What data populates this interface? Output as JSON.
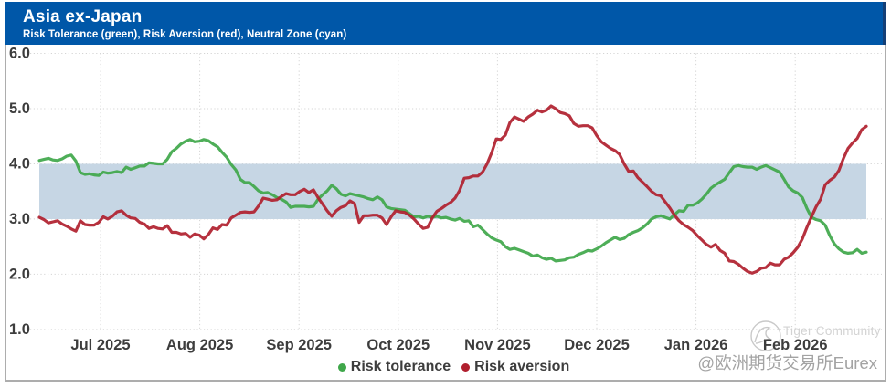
{
  "header": {
    "title": "Asia ex-Japan",
    "subtitle": "Risk Tolerance (green), Risk Aversion (red), Neutral Zone (cyan)",
    "background_color": "#0057a8"
  },
  "watermark": {
    "logo": "tiger-circle-sketch",
    "brand": "Tiger Community",
    "handle": "@欧洲期货交易所Eurex"
  },
  "chart_data": {
    "type": "line",
    "title": "Asia ex-Japan",
    "subtitle": "Risk Tolerance (green), Risk Aversion (red), Neutral Zone (cyan)",
    "grid": "dotted",
    "x_axis": {
      "unit": "months (0 = Jul 2025 tick, 1 = Aug 2025, ...)",
      "start": -0.617,
      "step": 0.04604,
      "tick_values": [
        0,
        1,
        2,
        3,
        4,
        5,
        6,
        7
      ],
      "tick_labels": [
        "Jul 2025",
        "Aug 2025",
        "Sep 2025",
        "Oct 2025",
        "Nov 2025",
        "Dec 2025",
        "Jan 2026",
        "Feb 2026"
      ]
    },
    "y_axis": {
      "min": 1.0,
      "max": 6.0,
      "tick_values": [
        6,
        5,
        4,
        3,
        2,
        1
      ],
      "tick_labels": [
        "6.0",
        "5.0",
        "4.0",
        "3.0",
        "2.0",
        "1.0"
      ]
    },
    "neutral_zone": {
      "label": "Neutral Zone (cyan)",
      "from": 3.0,
      "to": 4.0,
      "color": "#c6d6e4"
    },
    "legend": {
      "position": "bottom-center",
      "entries": [
        "Risk tolerance",
        "Risk aversion"
      ]
    },
    "series": [
      {
        "name": "Risk tolerance",
        "color": "#3fa74a",
        "values": [
          4.06,
          4.08,
          4.1,
          4.07,
          4.06,
          4.09,
          4.14,
          4.16,
          4.05,
          3.84,
          3.81,
          3.82,
          3.8,
          3.79,
          3.85,
          3.83,
          3.84,
          3.86,
          3.84,
          3.94,
          3.9,
          3.93,
          3.96,
          3.96,
          4.02,
          4.01,
          4.0,
          4.0,
          4.08,
          4.22,
          4.28,
          4.36,
          4.41,
          4.44,
          4.4,
          4.41,
          4.44,
          4.42,
          4.36,
          4.31,
          4.21,
          4.12,
          3.99,
          3.89,
          3.72,
          3.66,
          3.66,
          3.59,
          3.51,
          3.47,
          3.48,
          3.44,
          3.39,
          3.36,
          3.31,
          3.21,
          3.23,
          3.23,
          3.23,
          3.22,
          3.23,
          3.36,
          3.44,
          3.51,
          3.61,
          3.55,
          3.45,
          3.42,
          3.46,
          3.44,
          3.42,
          3.4,
          3.37,
          3.35,
          3.4,
          3.35,
          3.22,
          3.19,
          3.18,
          3.17,
          3.16,
          3.1,
          3.04,
          3.05,
          3.02,
          3.05,
          3.03,
          3.05,
          3.02,
          3.03,
          3.0,
          2.98,
          3.01,
          2.96,
          2.97,
          2.86,
          2.89,
          2.81,
          2.73,
          2.66,
          2.62,
          2.59,
          2.5,
          2.45,
          2.47,
          2.44,
          2.41,
          2.38,
          2.33,
          2.35,
          2.3,
          2.27,
          2.29,
          2.24,
          2.25,
          2.26,
          2.3,
          2.31,
          2.36,
          2.39,
          2.43,
          2.42,
          2.46,
          2.51,
          2.57,
          2.62,
          2.67,
          2.63,
          2.65,
          2.72,
          2.76,
          2.79,
          2.84,
          2.91,
          3.0,
          3.04,
          3.06,
          3.03,
          3.0,
          3.08,
          3.15,
          3.14,
          3.25,
          3.25,
          3.29,
          3.36,
          3.45,
          3.56,
          3.62,
          3.67,
          3.72,
          3.84,
          3.95,
          3.97,
          3.95,
          3.94,
          3.94,
          3.9,
          3.94,
          3.97,
          3.93,
          3.89,
          3.85,
          3.72,
          3.58,
          3.51,
          3.47,
          3.39,
          3.19,
          3.03,
          2.99,
          2.97,
          2.89,
          2.7,
          2.55,
          2.46,
          2.4,
          2.38,
          2.39,
          2.45,
          2.38,
          2.4
        ]
      },
      {
        "name": "Risk aversion",
        "color": "#b01f2e",
        "values": [
          3.03,
          2.99,
          2.93,
          2.95,
          2.97,
          2.91,
          2.87,
          2.82,
          2.78,
          2.97,
          2.9,
          2.89,
          2.89,
          2.94,
          3.04,
          3.0,
          3.05,
          3.13,
          3.15,
          3.07,
          3.02,
          3.01,
          2.94,
          2.91,
          2.83,
          2.86,
          2.83,
          2.82,
          2.88,
          2.76,
          2.76,
          2.73,
          2.74,
          2.67,
          2.73,
          2.71,
          2.64,
          2.72,
          2.84,
          2.81,
          2.9,
          2.89,
          3.02,
          3.07,
          3.12,
          3.13,
          3.12,
          3.13,
          3.24,
          3.38,
          3.36,
          3.34,
          3.35,
          3.41,
          3.46,
          3.44,
          3.44,
          3.5,
          3.54,
          3.48,
          3.53,
          3.39,
          3.27,
          3.15,
          3.05,
          3.15,
          3.21,
          3.24,
          3.33,
          3.28,
          2.94,
          3.06,
          3.06,
          3.07,
          3.07,
          3.02,
          2.9,
          3.04,
          3.15,
          3.13,
          3.12,
          3.07,
          3.0,
          2.91,
          2.83,
          2.85,
          3.02,
          3.14,
          3.19,
          3.25,
          3.3,
          3.38,
          3.52,
          3.74,
          3.75,
          3.78,
          3.78,
          3.85,
          4.0,
          4.2,
          4.45,
          4.44,
          4.52,
          4.75,
          4.85,
          4.81,
          4.77,
          4.85,
          4.9,
          4.97,
          4.94,
          4.97,
          5.05,
          5.0,
          4.93,
          4.91,
          4.87,
          4.73,
          4.68,
          4.69,
          4.69,
          4.65,
          4.51,
          4.4,
          4.34,
          4.28,
          4.24,
          4.17,
          4.0,
          3.86,
          3.87,
          3.75,
          3.67,
          3.59,
          3.5,
          3.44,
          3.42,
          3.31,
          3.2,
          3.07,
          2.97,
          2.9,
          2.85,
          2.79,
          2.7,
          2.62,
          2.54,
          2.49,
          2.54,
          2.43,
          2.38,
          2.24,
          2.23,
          2.18,
          2.11,
          2.05,
          2.02,
          2.05,
          2.11,
          2.12,
          2.2,
          2.17,
          2.17,
          2.27,
          2.31,
          2.39,
          2.49,
          2.64,
          2.85,
          3.04,
          3.22,
          3.36,
          3.62,
          3.7,
          3.76,
          3.88,
          4.1,
          4.28,
          4.38,
          4.46,
          4.62,
          4.68
        ]
      }
    ]
  }
}
